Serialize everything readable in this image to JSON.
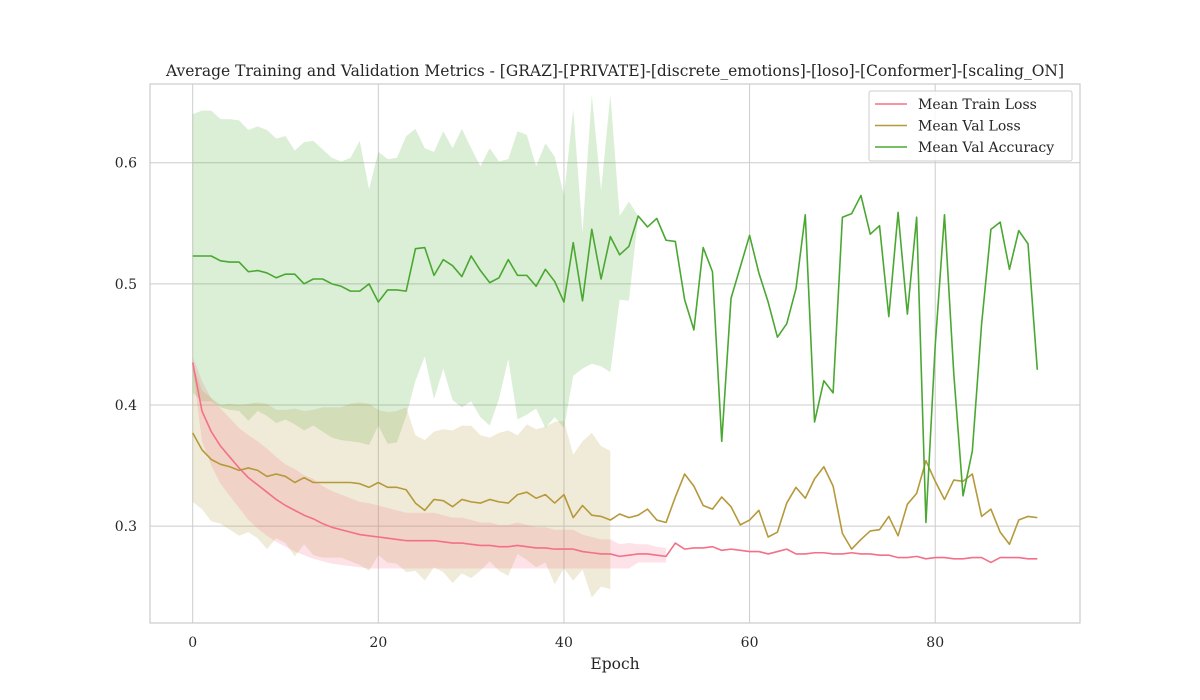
{
  "chart_data": {
    "type": "line",
    "title": "Average Training and Validation Metrics - [GRAZ]-[PRIVATE]-[discrete_emotions]-[loso]-[Conformer]-[scaling_ON]",
    "xlabel": "Epoch",
    "ylabel": "",
    "xlim": [
      -4.6,
      95.6
    ],
    "ylim": [
      0.22,
      0.665
    ],
    "xticks": [
      0,
      20,
      40,
      60,
      80
    ],
    "yticks": [
      0.3,
      0.4,
      0.5,
      0.6
    ],
    "xtick_labels": [
      "0",
      "20",
      "40",
      "60",
      "80"
    ],
    "ytick_labels": [
      "0.3",
      "0.4",
      "0.5",
      "0.6"
    ],
    "grid": true,
    "legend_position": "top-right",
    "series": [
      {
        "name": "Mean Train Loss",
        "color": "#f37088",
        "values": [
          0.435,
          0.395,
          0.378,
          0.366,
          0.357,
          0.348,
          0.34,
          0.334,
          0.328,
          0.322,
          0.317,
          0.313,
          0.309,
          0.306,
          0.302,
          0.299,
          0.297,
          0.295,
          0.293,
          0.292,
          0.291,
          0.29,
          0.289,
          0.288,
          0.288,
          0.288,
          0.288,
          0.287,
          0.286,
          0.286,
          0.285,
          0.284,
          0.284,
          0.283,
          0.283,
          0.284,
          0.283,
          0.282,
          0.282,
          0.281,
          0.281,
          0.281,
          0.279,
          0.278,
          0.277,
          0.277,
          0.275,
          0.276,
          0.277,
          0.277,
          0.276,
          0.275,
          0.286,
          0.281,
          0.282,
          0.282,
          0.283,
          0.28,
          0.281,
          0.28,
          0.279,
          0.279,
          0.277,
          0.279,
          0.281,
          0.277,
          0.277,
          0.278,
          0.278,
          0.277,
          0.277,
          0.278,
          0.277,
          0.277,
          0.276,
          0.276,
          0.274,
          0.274,
          0.275,
          0.273,
          0.274,
          0.274,
          0.273,
          0.273,
          0.274,
          0.274,
          0.27,
          0.274,
          0.274,
          0.274,
          0.273,
          0.273
        ],
        "band_lower": [
          0.43,
          0.37,
          0.35,
          0.335,
          0.325,
          0.315,
          0.305,
          0.298,
          0.292,
          0.287,
          0.283,
          0.279,
          0.276,
          0.273,
          0.271,
          0.269,
          0.268,
          0.267,
          0.266,
          0.265,
          0.265,
          0.265,
          0.265,
          0.265,
          0.265,
          0.265,
          0.265,
          0.265,
          0.265,
          0.265,
          0.265,
          0.265,
          0.265,
          0.265,
          0.265,
          0.265,
          0.265,
          0.265,
          0.265,
          0.265,
          0.265,
          0.265,
          0.265,
          0.265,
          0.265,
          0.265,
          0.265,
          0.265,
          0.27,
          0.27,
          0.27,
          0.27
        ],
        "band_upper": [
          0.44,
          0.42,
          0.405,
          0.397,
          0.389,
          0.381,
          0.375,
          0.37,
          0.364,
          0.357,
          0.351,
          0.347,
          0.342,
          0.339,
          0.333,
          0.329,
          0.326,
          0.323,
          0.32,
          0.319,
          0.317,
          0.315,
          0.313,
          0.311,
          0.311,
          0.311,
          0.311,
          0.309,
          0.307,
          0.307,
          0.305,
          0.303,
          0.303,
          0.301,
          0.301,
          0.303,
          0.301,
          0.299,
          0.299,
          0.297,
          0.297,
          0.297,
          0.293,
          0.291,
          0.289,
          0.289,
          0.285,
          0.286,
          0.285,
          0.285,
          0.283,
          0.282
        ]
      },
      {
        "name": "Mean Val Loss",
        "color": "#b5993a",
        "values": [
          0.377,
          0.363,
          0.355,
          0.351,
          0.349,
          0.346,
          0.348,
          0.346,
          0.341,
          0.343,
          0.341,
          0.336,
          0.34,
          0.336,
          0.336,
          0.336,
          0.336,
          0.336,
          0.335,
          0.332,
          0.336,
          0.332,
          0.332,
          0.33,
          0.319,
          0.313,
          0.322,
          0.321,
          0.316,
          0.322,
          0.32,
          0.319,
          0.322,
          0.32,
          0.319,
          0.326,
          0.328,
          0.323,
          0.326,
          0.319,
          0.326,
          0.307,
          0.317,
          0.309,
          0.308,
          0.305,
          0.31,
          0.307,
          0.309,
          0.314,
          0.305,
          0.303,
          0.324,
          0.343,
          0.333,
          0.317,
          0.314,
          0.324,
          0.316,
          0.301,
          0.305,
          0.313,
          0.291,
          0.295,
          0.319,
          0.332,
          0.323,
          0.339,
          0.349,
          0.333,
          0.294,
          0.281,
          0.289,
          0.296,
          0.297,
          0.308,
          0.292,
          0.318,
          0.327,
          0.354,
          0.337,
          0.322,
          0.338,
          0.337,
          0.343,
          0.308,
          0.314,
          0.295,
          0.285,
          0.305,
          0.308,
          0.307
        ],
        "band_lower": [
          0.32,
          0.314,
          0.304,
          0.302,
          0.297,
          0.292,
          0.295,
          0.29,
          0.281,
          0.29,
          0.286,
          0.275,
          0.285,
          0.276,
          0.274,
          0.274,
          0.274,
          0.271,
          0.268,
          0.263,
          0.276,
          0.27,
          0.269,
          0.262,
          0.263,
          0.255,
          0.266,
          0.262,
          0.253,
          0.261,
          0.257,
          0.263,
          0.271,
          0.263,
          0.259,
          0.277,
          0.272,
          0.266,
          0.27,
          0.252,
          0.265,
          0.255,
          0.264,
          0.241,
          0.25,
          0.248
        ],
        "band_upper": [
          0.434,
          0.412,
          0.406,
          0.4,
          0.401,
          0.4,
          0.401,
          0.402,
          0.401,
          0.396,
          0.396,
          0.397,
          0.395,
          0.396,
          0.398,
          0.398,
          0.398,
          0.401,
          0.402,
          0.401,
          0.396,
          0.394,
          0.395,
          0.398,
          0.375,
          0.371,
          0.378,
          0.38,
          0.379,
          0.383,
          0.383,
          0.375,
          0.373,
          0.377,
          0.379,
          0.375,
          0.384,
          0.38,
          0.382,
          0.386,
          0.387,
          0.359,
          0.37,
          0.377,
          0.366,
          0.362
        ]
      },
      {
        "name": "Mean Val Accuracy",
        "color": "#4aa832",
        "values": [
          0.523,
          0.523,
          0.523,
          0.519,
          0.518,
          0.518,
          0.51,
          0.511,
          0.509,
          0.505,
          0.508,
          0.508,
          0.5,
          0.504,
          0.504,
          0.5,
          0.498,
          0.494,
          0.494,
          0.5,
          0.485,
          0.495,
          0.495,
          0.494,
          0.529,
          0.53,
          0.507,
          0.52,
          0.515,
          0.506,
          0.523,
          0.511,
          0.501,
          0.505,
          0.52,
          0.507,
          0.507,
          0.498,
          0.512,
          0.502,
          0.485,
          0.534,
          0.486,
          0.545,
          0.504,
          0.539,
          0.524,
          0.531,
          0.556,
          0.547,
          0.554,
          0.536,
          0.535,
          0.487,
          0.462,
          0.53,
          0.51,
          0.37,
          0.488,
          0.514,
          0.54,
          0.509,
          0.485,
          0.456,
          0.467,
          0.496,
          0.557,
          0.386,
          0.42,
          0.41,
          0.555,
          0.558,
          0.573,
          0.541,
          0.548,
          0.473,
          0.559,
          0.475,
          0.555,
          0.303,
          0.449,
          0.557,
          0.426,
          0.325,
          0.362,
          0.467,
          0.545,
          0.551,
          0.512,
          0.544,
          0.533,
          0.429
        ],
        "band_lower": [
          0.41,
          0.403,
          0.403,
          0.398,
          0.396,
          0.395,
          0.387,
          0.395,
          0.391,
          0.385,
          0.388,
          0.384,
          0.379,
          0.383,
          0.378,
          0.373,
          0.371,
          0.37,
          0.369,
          0.367,
          0.383,
          0.368,
          0.369,
          0.391,
          0.42,
          0.44,
          0.405,
          0.43,
          0.404,
          0.398,
          0.403,
          0.39,
          0.383,
          0.405,
          0.438,
          0.388,
          0.392,
          0.397,
          0.381,
          0.39,
          0.381,
          0.424,
          0.43,
          0.434,
          0.432,
          0.427,
          0.487,
          0.486,
          0.556,
          0.547,
          0.554
        ],
        "band_upper": [
          0.64,
          0.643,
          0.643,
          0.636,
          0.636,
          0.635,
          0.627,
          0.63,
          0.627,
          0.62,
          0.622,
          0.61,
          0.617,
          0.618,
          0.611,
          0.604,
          0.601,
          0.604,
          0.618,
          0.578,
          0.609,
          0.603,
          0.604,
          0.622,
          0.628,
          0.612,
          0.609,
          0.626,
          0.612,
          0.628,
          0.612,
          0.597,
          0.612,
          0.601,
          0.603,
          0.626,
          0.623,
          0.597,
          0.616,
          0.605,
          0.573,
          0.644,
          0.542,
          0.656,
          0.577,
          0.656,
          0.556,
          0.568,
          0.556,
          0.547,
          0.554
        ]
      }
    ]
  }
}
